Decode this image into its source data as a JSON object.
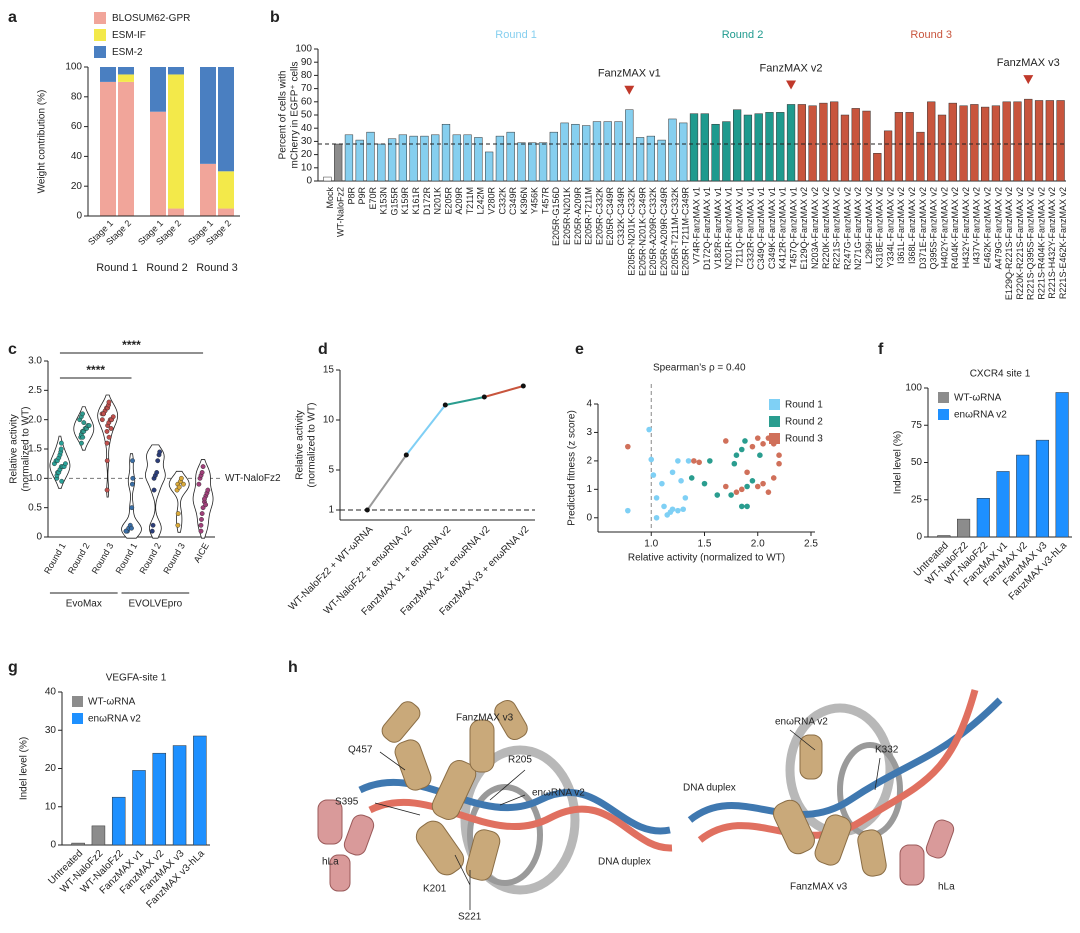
{
  "chart_data": [
    {
      "panel": "a",
      "type": "stacked_bar",
      "ylabel": "Weight contribution (%)",
      "ylim": [
        0,
        100
      ],
      "yticks": [
        0,
        20,
        40,
        60,
        80,
        100
      ],
      "groups": [
        {
          "name": "Round 1",
          "categories": [
            "Stage 1",
            "Stage 2"
          ]
        },
        {
          "name": "Round 2",
          "categories": [
            "Stage 1",
            "Stage 2"
          ]
        },
        {
          "name": "Round 3",
          "categories": [
            "Stage 1",
            "Stage 2"
          ]
        }
      ],
      "series": [
        {
          "name": "BLOSUM62-GPR",
          "color": "#f1a59a",
          "values": [
            90,
            90,
            70,
            5,
            35,
            5
          ]
        },
        {
          "name": "ESM-IF",
          "color": "#f3e94a",
          "values": [
            0,
            5,
            0,
            90,
            0,
            25
          ]
        },
        {
          "name": "ESM-2",
          "color": "#4a7fc1",
          "values": [
            10,
            5,
            30,
            5,
            65,
            70
          ]
        }
      ]
    },
    {
      "panel": "b",
      "type": "bar",
      "ylabel": [
        "Percent of cells with",
        "mCherry in EGFP⁺ cells"
      ],
      "ylim": [
        0,
        100
      ],
      "yticks": [
        0,
        10,
        20,
        30,
        40,
        50,
        60,
        70,
        80,
        90,
        100
      ],
      "categories": [
        "Mock",
        "WT-NaloFz2",
        "P8R",
        "P9R",
        "E70R",
        "K153N",
        "G155R",
        "K159R",
        "K161R",
        "D172R",
        "N201K",
        "E205R",
        "A209R",
        "T211M",
        "L242M",
        "V280R",
        "C332K",
        "C349R",
        "K396N",
        "Y456K",
        "T457R",
        "E205R-G156D",
        "E205R-N201K",
        "E205R-A209R",
        "E205R-T211M",
        "E205R-C332K",
        "E205R-C349R",
        "C332K-C349R",
        "E205R-N201K-C332K",
        "E205R-N201K-C349R",
        "E205R-A209R-C332K",
        "E205R-A209R-C349R",
        "E205R-T211M-C332K",
        "E205R-T211M-C349R",
        "V74R-FanzMAX v1",
        "D172Q-FanzMAX v1",
        "V182R-FanzMAX v1",
        "N201R-FanzMAX v1",
        "T211Q-FanzMAX v1",
        "C332R-FanzMAX v1",
        "C349Q-FanzMAX v1",
        "C349K-FanzMAX v1",
        "K412R-FanzMAX v1",
        "T457Q-FanzMAX v1",
        "E129Q-FanzMAX v2",
        "N203A-FanzMAX v2",
        "R220K-FanzMAX v2",
        "R221S-FanzMAX v2",
        "R247G-FanzMAX v2",
        "N271G-FanzMAX v2",
        "L299I-FanzMAX v2",
        "K318E-FanzMAX v2",
        "Y334L-FanzMAX v2",
        "I361L-FanzMAX v2",
        "I368L-FanzMAX v2",
        "D371E-FanzMAX v2",
        "Q395S-FanzMAX v2",
        "H402Y-FanzMAX v2",
        "R404K-FanzMAX v2",
        "H432Y-FanzMAX v2",
        "I437V-FanzMAX v2",
        "E462K-FanzMAX v2",
        "A479G-FanzMAX v2",
        "E129Q-R221S-FanzMAX v2",
        "R220K-R221S-FanzMAX v2",
        "R221S-Q395S-FanzMAX v2",
        "R221S-R404K-FanzMAX v2",
        "R221S-H432Y-FanzMAX v2",
        "R221S-E462K-FanzMAX v2"
      ],
      "values": [
        3,
        28,
        35,
        31,
        37,
        28,
        32,
        35,
        34,
        34,
        35,
        43,
        35,
        35,
        33,
        22,
        34,
        37,
        29,
        29,
        29,
        37,
        44,
        43,
        42,
        45,
        45,
        45,
        54,
        33,
        34,
        31,
        47,
        44,
        51,
        51,
        43,
        45,
        54,
        50,
        51,
        52,
        52,
        58,
        58,
        57,
        59,
        60,
        50,
        55,
        53,
        21,
        38,
        52,
        52,
        37,
        60,
        50,
        59,
        57,
        58,
        56,
        57,
        60,
        60,
        62,
        61,
        61,
        61
      ],
      "groups": [
        {
          "from": "Mock",
          "to": "Mock",
          "color": "#ffffff"
        },
        {
          "from": "WT-NaloFz2",
          "to": "WT-NaloFz2",
          "color": "#8c8c8c"
        },
        {
          "name": "Round 1",
          "from": "P8R",
          "to": "E205R-T211M-C349R",
          "color": "#86cfef"
        },
        {
          "name": "Round 2",
          "from": "V74R-FanzMAX v1",
          "to": "T457Q-FanzMAX v1",
          "color": "#1f9a8e"
        },
        {
          "name": "Round 3",
          "from": "E129Q-FanzMAX v2",
          "to": "R221S-E462K-FanzMAX v2",
          "color": "#c8553d"
        }
      ],
      "reference_category": "WT-NaloFz2",
      "annotations": [
        {
          "text": "FanzMAX v1",
          "category": "E205R-N201K-C332K"
        },
        {
          "text": "FanzMAX v2",
          "category": "T457Q-FanzMAX v1"
        },
        {
          "text": "FanzMAX v3",
          "category": "R221S-Q395S-FanzMAX v2"
        }
      ]
    },
    {
      "panel": "c",
      "type": "violin",
      "ylabel": [
        "Relative activity",
        "(normalized to WT)"
      ],
      "ylim": [
        0,
        3
      ],
      "yticks": [
        0,
        0.5,
        {
          "value": 1,
          "label": "1.0"
        },
        1.5,
        {
          "value": 2,
          "label": "2.0"
        },
        2.5,
        {
          "value": 3,
          "label": "3.0"
        }
      ],
      "categories": [
        "Round 1",
        "Round 2",
        "Round 3",
        "Round 1",
        "Round 2",
        "Round 3",
        "AICE"
      ],
      "colors": [
        "#2aa198",
        "#2f9c8f",
        "#c0504d",
        "#3a6ea5",
        "#2c3e7a",
        "#d9a93a",
        "#a0407a"
      ],
      "points": [
        [
          1.0,
          1.05,
          1.1,
          1.1,
          1.15,
          1.2,
          1.2,
          1.2,
          1.25,
          1.25,
          1.3,
          1.3,
          1.35,
          1.4,
          1.45,
          1.5,
          0.95,
          1.6
        ],
        [
          1.6,
          1.7,
          1.75,
          1.8,
          1.8,
          1.85,
          1.85,
          1.9,
          1.9,
          2.0,
          2.05,
          2.1,
          1.7,
          1.95
        ],
        [
          0.8,
          1.3,
          1.6,
          1.8,
          1.9,
          1.95,
          2.0,
          2.0,
          2.05,
          2.1,
          2.1,
          2.15,
          2.2,
          2.2,
          2.25,
          2.3,
          1.7,
          1.85,
          2.0,
          2.1
        ],
        [
          0.1,
          0.1,
          0.15,
          0.2,
          0.15,
          0.5,
          0.9,
          1.0,
          1.3,
          0.1
        ],
        [
          0.1,
          0.2,
          0.8,
          1.0,
          1.05,
          1.1,
          1.3,
          1.4,
          1.45
        ],
        [
          0.2,
          0.4,
          0.8,
          0.9,
          0.85,
          0.95,
          1.0,
          0.9
        ],
        [
          0.1,
          0.2,
          0.3,
          0.4,
          0.5,
          0.6,
          0.7,
          0.75,
          0.8,
          0.9,
          1.0,
          1.05,
          1.1,
          1.2,
          0.65,
          0.55
        ]
      ],
      "groups": [
        {
          "name": "EvoMax",
          "from": 0,
          "to": 2
        },
        {
          "name": "EVOLVEpro",
          "from": 3,
          "to": 5
        }
      ],
      "comparisons": [
        {
          "label": "****",
          "from": 0,
          "to": 3
        },
        {
          "label": "****",
          "from": 0,
          "to": 6
        }
      ],
      "reference_line": {
        "value": 1,
        "label": "WT-NaloFz2"
      }
    },
    {
      "panel": "d",
      "type": "line",
      "ylabel": [
        "Relative activity",
        "(normalized to WT)"
      ],
      "ylim": [
        0,
        15
      ],
      "yticks": [
        1,
        5,
        10,
        15
      ],
      "categories": [
        "WT-NaloFz2 + WT-ωRNA",
        "WT-NaloFz2 + enωRNA v2",
        "FanzMAX v1 + enωRNA v2",
        "FanzMAX v2 + enωRNA v2",
        "FanzMAX v3 + enωRNA v2"
      ],
      "values": [
        1,
        6.5,
        11.5,
        12.3,
        13.4
      ],
      "segment_colors": [
        "#9a9a9a",
        "#7fcff5",
        "#2a9d8f",
        "#c8553d"
      ],
      "hline": 1
    },
    {
      "panel": "e",
      "type": "scatter",
      "xlabel": "Relative activity (normalized to WT)",
      "ylabel": "Predicted fitness (z score)",
      "annotation": "Spearman’s ρ = 0.40",
      "xlim": [
        0.5,
        2.5
      ],
      "xticks": [
        {
          "value": 1,
          "label": "1.0"
        },
        1.5,
        {
          "value": 2,
          "label": "2.0"
        },
        2.5
      ],
      "ylim": [
        -0.5,
        4
      ],
      "yticks": [
        0,
        1,
        2,
        3,
        4
      ],
      "vline": 1,
      "series": [
        {
          "name": "Round 1",
          "color": "#7fd0f5",
          "x": [
            0.98,
            1.0,
            0.78,
            1.02,
            1.05,
            1.1,
            1.12,
            1.15,
            1.2,
            1.2,
            1.25,
            1.25,
            1.3,
            1.32,
            1.35,
            1.18,
            1.28,
            1.05
          ],
          "y": [
            3.1,
            2.05,
            0.25,
            1.5,
            0.7,
            1.2,
            0.4,
            0.1,
            0.3,
            1.6,
            2.0,
            0.25,
            0.3,
            0.7,
            2.0,
            0.2,
            1.3,
            0.0
          ]
        },
        {
          "name": "Round 2",
          "color": "#2a9d8f",
          "x": [
            1.5,
            1.55,
            1.62,
            1.75,
            1.8,
            1.85,
            1.85,
            1.9,
            1.9,
            1.95,
            1.78,
            1.38,
            1.88,
            2.02
          ],
          "y": [
            1.2,
            2.0,
            0.8,
            0.8,
            2.2,
            2.4,
            0.4,
            0.4,
            1.1,
            1.3,
            1.9,
            1.4,
            2.7,
            2.2
          ]
        },
        {
          "name": "Round 3",
          "color": "#d0705a",
          "x": [
            0.78,
            1.4,
            1.45,
            1.7,
            1.8,
            1.85,
            1.9,
            1.95,
            2.0,
            2.05,
            2.05,
            2.1,
            2.15,
            2.15,
            2.2,
            2.2,
            2.0,
            1.7,
            2.1
          ],
          "y": [
            2.5,
            2.0,
            1.95,
            2.7,
            0.9,
            1.0,
            1.6,
            2.5,
            2.8,
            2.6,
            1.2,
            0.9,
            2.6,
            1.4,
            2.2,
            1.9,
            1.1,
            1.1,
            2.8
          ]
        }
      ]
    },
    {
      "panel": "f",
      "type": "bar",
      "title": "CXCR4 site 1",
      "ylabel": "Indel level (%)",
      "ylim": [
        0,
        100
      ],
      "yticks": [
        0,
        25,
        50,
        75,
        100
      ],
      "categories": [
        "Untreated",
        "WT-NaloFz2",
        "WT-NaloFz2",
        "FanzMAX v1",
        "FanzMAX v2",
        "FanzMAX v3",
        "FanzMAX v3-hLa"
      ],
      "series": [
        {
          "name": "WT-ωRNA",
          "color": "#8c8c8c",
          "values": [
            1,
            12,
            null,
            null,
            null,
            null,
            null
          ]
        },
        {
          "name": "enωRNA v2",
          "color": "#1e90ff",
          "values": [
            null,
            null,
            26,
            44,
            55,
            65,
            97
          ]
        }
      ]
    },
    {
      "panel": "g",
      "type": "bar",
      "title": "VEGFA-site 1",
      "ylabel": "Indel level (%)",
      "ylim": [
        0,
        40
      ],
      "yticks": [
        0,
        10,
        20,
        30,
        40
      ],
      "categories": [
        "Untreated",
        "WT-NaloFz2",
        "WT-NaloFz2",
        "FanzMAX v1",
        "FanzMAX v2",
        "FanzMAX v3",
        "FanzMAX v3-hLa"
      ],
      "series": [
        {
          "name": "WT-ωRNA",
          "color": "#8c8c8c",
          "values": [
            0.5,
            5,
            null,
            null,
            null,
            null,
            null
          ]
        },
        {
          "name": "enωRNA v2",
          "color": "#1e90ff",
          "values": [
            null,
            null,
            12.5,
            19.5,
            24,
            26,
            28.5
          ]
        }
      ]
    }
  ],
  "structure_panel": {
    "panel": "h",
    "left": [
      "FanzMAX v3",
      "Q457",
      "R205",
      "S395",
      "enωRNA v2",
      "hLa",
      "DNA duplex",
      "K201",
      "S221"
    ],
    "right": [
      "enωRNA v2",
      "K332",
      "DNA duplex",
      "FanzMAX v3",
      "hLa"
    ]
  }
}
